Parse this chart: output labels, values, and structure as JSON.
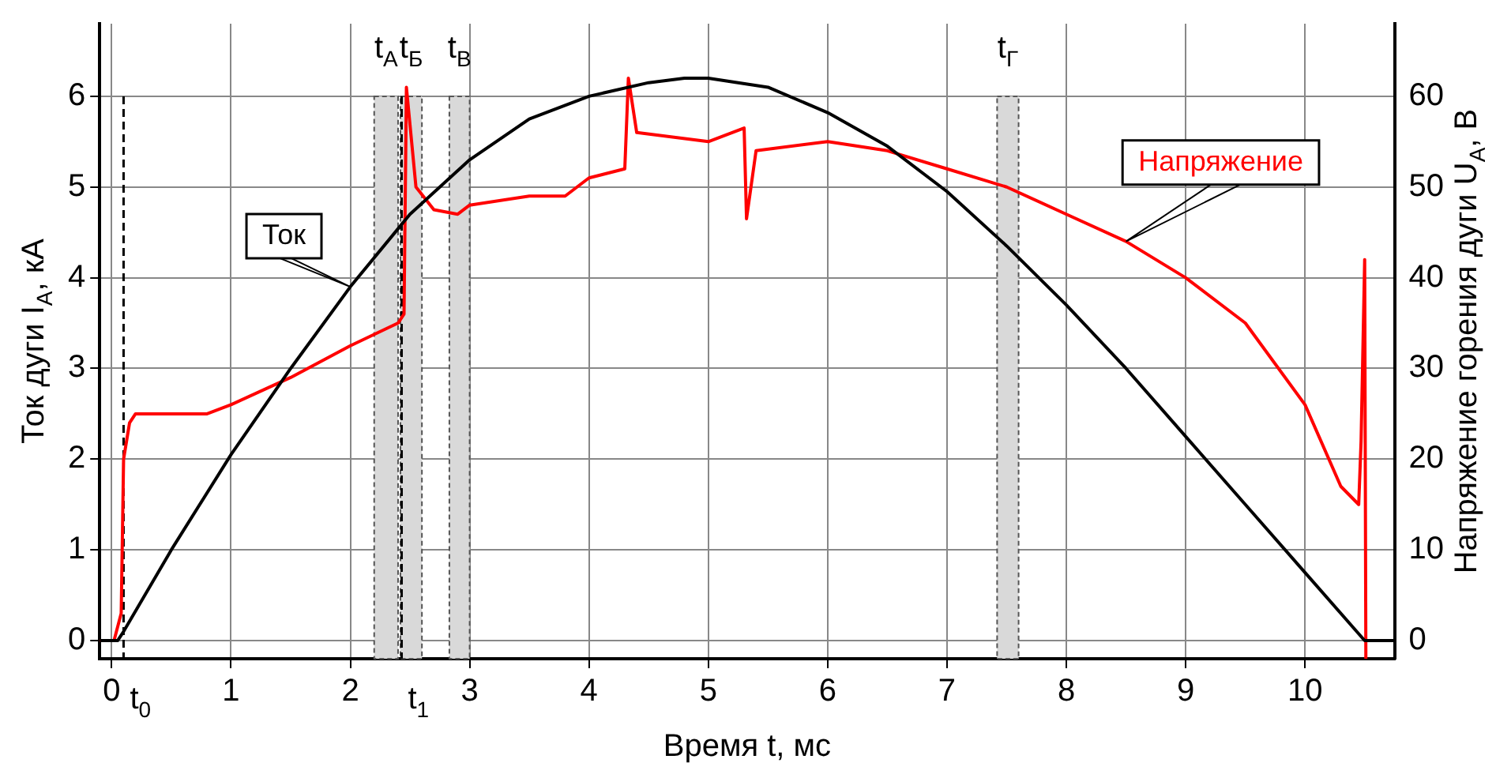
{
  "chart_data": {
    "type": "line",
    "xlabel": "Время t, мс",
    "ylabel": "Ток дуги I$_{А}$, кА",
    "y2label": "Напряжение горения дуги U$_{А}$, В",
    "xlim": [
      -0.1,
      10.75
    ],
    "xticks": [
      0,
      1,
      2,
      3,
      4,
      5,
      6,
      7,
      8,
      9,
      10
    ],
    "ylim": [
      -0.2,
      6.8
    ],
    "yticks": [
      0,
      1,
      2,
      3,
      4,
      5,
      6
    ],
    "y2lim": [
      -2,
      68
    ],
    "y2ticks": [
      0,
      10,
      20,
      30,
      40,
      50,
      60
    ],
    "grid": true,
    "legend": false,
    "series": [
      {
        "name": "Ток",
        "color": "#000000",
        "x": [
          -0.1,
          0.05,
          0.1,
          0.5,
          1,
          1.5,
          2,
          2.5,
          3,
          3.5,
          4,
          4.5,
          4.8,
          5,
          5.5,
          6,
          6.5,
          7,
          7.5,
          8,
          8.5,
          9,
          9.5,
          10,
          10.5,
          10.75
        ],
        "values": [
          0,
          0,
          0.1,
          1.0,
          2.05,
          3.0,
          3.9,
          4.7,
          5.3,
          5.75,
          6.0,
          6.15,
          6.2,
          6.2,
          6.1,
          5.82,
          5.45,
          4.95,
          4.35,
          3.7,
          3.0,
          2.25,
          1.5,
          0.75,
          0,
          0
        ]
      },
      {
        "name": "Напряжение",
        "color": "#ff0000",
        "axis": "y2",
        "x": [
          -0.1,
          0.02,
          0.08,
          0.1,
          0.15,
          0.2,
          0.8,
          1,
          1.5,
          2,
          2.4,
          2.45,
          2.47,
          2.55,
          2.7,
          2.9,
          3,
          3.5,
          3.8,
          4,
          4.3,
          4.33,
          4.4,
          5,
          5.3,
          5.32,
          5.4,
          6,
          6.5,
          7,
          7.5,
          8,
          8.5,
          9,
          9.5,
          10,
          10.3,
          10.45,
          10.47,
          10.5,
          10.51
        ],
        "values": [
          0,
          0,
          3,
          20,
          24,
          25,
          25,
          26,
          29,
          32.5,
          35,
          36,
          61,
          50,
          47.5,
          47,
          48,
          49,
          49,
          51,
          52,
          62,
          56,
          55,
          56.5,
          46.5,
          54,
          55,
          54,
          52,
          50,
          47,
          44,
          40,
          35,
          26,
          17,
          15,
          22,
          42,
          -2
        ]
      }
    ],
    "bands": [
      {
        "axis": "x",
        "from": 2.2,
        "to": 2.4,
        "label": "t$_{А}$",
        "color": "#d9d9d9"
      },
      {
        "axis": "x",
        "from": 2.42,
        "to": 2.6,
        "label": "t$_{Б}$",
        "color": "#d9d9d9"
      },
      {
        "axis": "x",
        "from": 2.83,
        "to": 3.0,
        "label": "t$_{В}$",
        "color": "#d9d9d9"
      },
      {
        "axis": "x",
        "from": 7.42,
        "to": 7.6,
        "label": "t$_{Г}$",
        "color": "#d9d9d9"
      }
    ],
    "ref_lines": [
      {
        "axis": "x",
        "value": 0.1,
        "label": "t$_{0}$",
        "line_style": "dashed",
        "color": "#000000"
      },
      {
        "axis": "x",
        "value": 2.43,
        "label": "t$_{1}$",
        "line_style": "dashed",
        "color": "#000000"
      }
    ]
  }
}
